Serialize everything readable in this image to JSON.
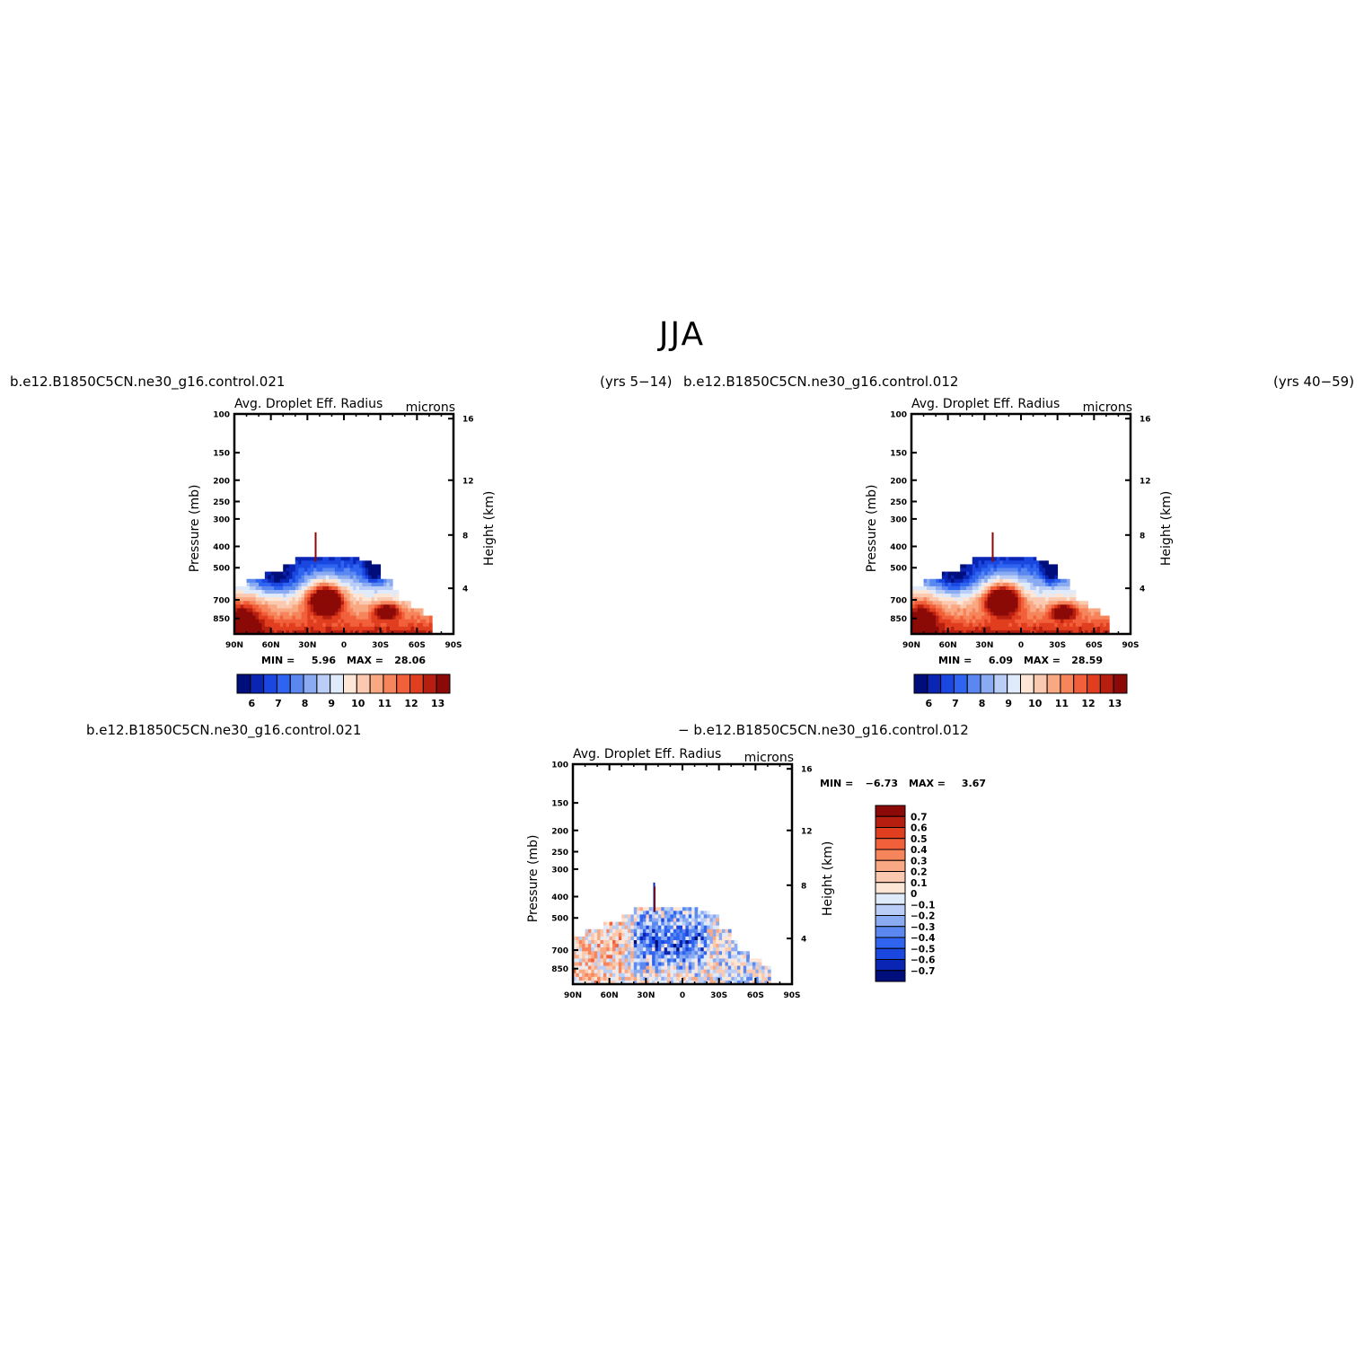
{
  "page": {
    "title": "JJA",
    "left_case": "b.e12.B1850C5CN.ne30_g16.control.021",
    "left_years": "(yrs 5−14)",
    "right_case": "b.e12.B1850C5CN.ne30_g16.control.012",
    "right_years": "(yrs 40−59)",
    "diff_left": "b.e12.B1850C5CN.ne30_g16.control.021",
    "diff_right": "− b.e12.B1850C5CN.ne30_g16.control.012"
  },
  "chart_data": [
    {
      "type": "heatmap",
      "panel": "control.021",
      "title": "Avg. Droplet Eff. Radius",
      "units": "microns",
      "xlabel": "",
      "ylabel": "Pressure (mb)",
      "ylabel_right": "Height (km)",
      "x_ticks": [
        "90N",
        "60N",
        "30N",
        "0",
        "30S",
        "60S",
        "90S"
      ],
      "y_ticks": [
        "100",
        "150",
        "200",
        "250",
        "300",
        "400",
        "500",
        "700",
        "850"
      ],
      "y_ticks_right": [
        "16",
        "12",
        "8",
        "4"
      ],
      "min_label": "MIN =",
      "min_value": "5.96",
      "max_label": "MAX =",
      "max_value": "28.06",
      "colorbar_labels": [
        "6",
        "7",
        "8",
        "9",
        "10",
        "11",
        "12",
        "13"
      ],
      "colors": [
        "#000e7c",
        "#0a25b4",
        "#1a47e0",
        "#2f64f0",
        "#5a87f0",
        "#8aaaf2",
        "#b9cdf7",
        "#dfeafb",
        "#fde6d6",
        "#fbc9af",
        "#f9a884",
        "#f7855c",
        "#f2603b",
        "#e03e1f",
        "#b61f10",
        "#8b0a07"
      ],
      "ylim": [
        100,
        1000
      ],
      "xlim": [
        90,
        -90
      ]
    },
    {
      "type": "heatmap",
      "panel": "control.012",
      "title": "Avg. Droplet Eff. Radius",
      "units": "microns",
      "ylabel": "Pressure (mb)",
      "ylabel_right": "Height (km)",
      "x_ticks": [
        "90N",
        "60N",
        "30N",
        "0",
        "30S",
        "60S",
        "90S"
      ],
      "y_ticks": [
        "100",
        "150",
        "200",
        "250",
        "300",
        "400",
        "500",
        "700",
        "850"
      ],
      "y_ticks_right": [
        "16",
        "12",
        "8",
        "4"
      ],
      "min_label": "MIN =",
      "min_value": "6.09",
      "max_label": "MAX =",
      "max_value": "28.59",
      "colorbar_labels": [
        "6",
        "7",
        "8",
        "9",
        "10",
        "11",
        "12",
        "13"
      ],
      "ylim": [
        100,
        1000
      ],
      "xlim": [
        90,
        -90
      ]
    },
    {
      "type": "heatmap",
      "panel": "difference",
      "title": "Avg. Droplet Eff. Radius",
      "units": "microns",
      "ylabel": "Pressure (mb)",
      "ylabel_right": "Height (km)",
      "x_ticks": [
        "90N",
        "60N",
        "30N",
        "0",
        "30S",
        "60S",
        "90S"
      ],
      "y_ticks": [
        "100",
        "150",
        "200",
        "250",
        "300",
        "400",
        "500",
        "700",
        "850"
      ],
      "y_ticks_right": [
        "16",
        "12",
        "8",
        "4"
      ],
      "min_label": "MIN =",
      "min_value": "−6.73",
      "max_label": "MAX =",
      "max_value": "3.67",
      "colorbar_labels": [
        "0.7",
        "0.6",
        "0.5",
        "0.4",
        "0.3",
        "0.2",
        "0.1",
        "0",
        "−0.1",
        "−0.2",
        "−0.3",
        "−0.4",
        "−0.5",
        "−0.6",
        "−0.7"
      ],
      "colors": [
        "#8b0a07",
        "#b61f10",
        "#e03e1f",
        "#f2603b",
        "#f7855c",
        "#f9a884",
        "#fbc9af",
        "#fde6d6",
        "#dfeafb",
        "#b9cdf7",
        "#8aaaf2",
        "#5a87f0",
        "#2f64f0",
        "#1a47e0",
        "#0a25b4",
        "#000e7c"
      ],
      "ylim": [
        100,
        1000
      ],
      "xlim": [
        90,
        -90
      ]
    }
  ]
}
